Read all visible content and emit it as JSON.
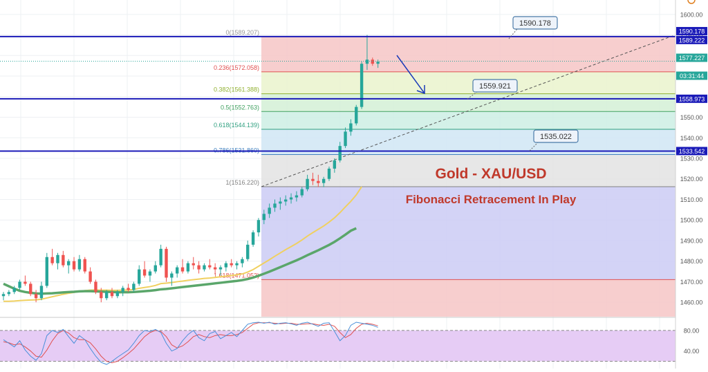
{
  "chart_data": {
    "type": "candlestick",
    "title": "Gold - XAU/USD",
    "subtitle": "Fibonacci Retracement In Play",
    "colors": {
      "up": "#26a69a",
      "down": "#ef5350",
      "ema_fast": "#f0d060",
      "ema_slow": "#5aa66a",
      "hline": "#1a1ab8",
      "title": "#c0392b",
      "callout_border": "#4a7aa8",
      "stoch_bg": "#e6ccf5",
      "stoch_k": "#4a90d9",
      "stoch_d": "#e05050",
      "arrow": "#1a3ab8"
    },
    "price_axis": {
      "range": [
        1453,
        1607
      ],
      "ticks": [
        1600,
        1590,
        1580,
        1570,
        1560,
        1550,
        1540,
        1530,
        1520,
        1510,
        1500,
        1490,
        1480,
        1470,
        1460
      ]
    },
    "fibonacci": {
      "levels": [
        {
          "label": "0(1589.207)",
          "value": 1589.207,
          "zone_color": "#f6c5c5"
        },
        {
          "label": "0.236(1572.058)",
          "value": 1572.058,
          "zone_color": "#eaf3cc"
        },
        {
          "label": "0.382(1561.388)",
          "value": 1561.388,
          "zone_color": "#d3f0d6"
        },
        {
          "label": "0.5(1552.763)",
          "value": 1552.763,
          "zone_color": "#cdeee4"
        },
        {
          "label": "0.618(1544.139)",
          "value": 1544.139,
          "zone_color": "#d0e6f5"
        },
        {
          "label": "0.786(1531.860)",
          "value": 1531.86,
          "zone_color": "#e3e3e3"
        },
        {
          "label": "1(1516.220)",
          "value": 1516.22,
          "zone_color": "#cbcbf5"
        },
        {
          "label": "1.618(1471.052)",
          "value": 1471.052,
          "zone_color": "#f6c5c5"
        }
      ],
      "line_colors": [
        "#999999",
        "#e05050",
        "#90b030",
        "#40a060",
        "#30a080",
        "#4080c0",
        "#808080",
        "#e05050"
      ]
    },
    "horizontal_lines": [
      1589.222,
      1558.973,
      1533.542
    ],
    "callouts": [
      {
        "text": "1590.178",
        "value": 1590.178
      },
      {
        "text": "1559.921",
        "value": 1559.921
      },
      {
        "text": "1535.022",
        "value": 1535.022
      }
    ],
    "axis_labels": [
      {
        "text": "1590.178",
        "value": 1590.178,
        "bg": "#1a1ab8",
        "fg": "#ffffff"
      },
      {
        "text": "1589.222",
        "value": 1589.222,
        "bg": "#1a1ab8",
        "fg": "#ffffff"
      },
      {
        "text": "1577.227",
        "value": 1577.227,
        "bg": "#26a69a",
        "fg": "#ffffff"
      },
      {
        "text": "03:31:44",
        "value": 1572.2,
        "bg": "#26a69a",
        "fg": "#ffffff"
      },
      {
        "text": "1558.973",
        "value": 1558.973,
        "bg": "#1a1ab8",
        "fg": "#ffffff"
      },
      {
        "text": "1533.542",
        "value": 1533.542,
        "bg": "#1a1ab8",
        "fg": "#ffffff"
      }
    ],
    "stochastic": {
      "ticks": [
        80,
        40
      ],
      "range": [
        10,
        100
      ],
      "band": [
        20,
        80
      ]
    },
    "candles": [
      [
        1463,
        1465,
        1461,
        1464
      ],
      [
        1464,
        1466,
        1463,
        1465
      ],
      [
        1465,
        1468,
        1464,
        1467
      ],
      [
        1467,
        1471,
        1466,
        1470
      ],
      [
        1470,
        1473,
        1468,
        1469
      ],
      [
        1469,
        1470,
        1463,
        1464
      ],
      [
        1464,
        1466,
        1460,
        1462
      ],
      [
        1462,
        1470,
        1461,
        1468
      ],
      [
        1468,
        1484,
        1467,
        1482
      ],
      [
        1482,
        1486,
        1478,
        1479
      ],
      [
        1479,
        1484,
        1476,
        1483
      ],
      [
        1483,
        1485,
        1477,
        1478
      ],
      [
        1478,
        1481,
        1474,
        1480
      ],
      [
        1480,
        1482,
        1475,
        1476
      ],
      [
        1476,
        1483,
        1475,
        1481
      ],
      [
        1481,
        1482,
        1474,
        1475
      ],
      [
        1475,
        1477,
        1469,
        1470
      ],
      [
        1470,
        1471,
        1464,
        1465
      ],
      [
        1465,
        1467,
        1460,
        1462
      ],
      [
        1462,
        1466,
        1461,
        1465
      ],
      [
        1465,
        1467,
        1462,
        1463
      ],
      [
        1463,
        1466,
        1462,
        1465
      ],
      [
        1465,
        1468,
        1463,
        1467
      ],
      [
        1467,
        1469,
        1465,
        1466
      ],
      [
        1466,
        1470,
        1465,
        1469
      ],
      [
        1469,
        1478,
        1468,
        1476
      ],
      [
        1476,
        1480,
        1472,
        1473
      ],
      [
        1473,
        1476,
        1470,
        1475
      ],
      [
        1475,
        1480,
        1474,
        1478
      ],
      [
        1478,
        1488,
        1477,
        1486
      ],
      [
        1486,
        1487,
        1470,
        1472
      ],
      [
        1472,
        1475,
        1468,
        1474
      ],
      [
        1474,
        1478,
        1472,
        1477
      ],
      [
        1477,
        1481,
        1474,
        1475
      ],
      [
        1475,
        1480,
        1474,
        1479
      ],
      [
        1479,
        1482,
        1476,
        1478
      ],
      [
        1478,
        1480,
        1474,
        1476
      ],
      [
        1476,
        1479,
        1475,
        1478
      ],
      [
        1478,
        1481,
        1476,
        1477
      ],
      [
        1477,
        1479,
        1474,
        1476
      ],
      [
        1476,
        1478,
        1473,
        1477
      ],
      [
        1477,
        1480,
        1475,
        1479
      ],
      [
        1479,
        1481,
        1477,
        1478
      ],
      [
        1478,
        1480,
        1476,
        1479
      ],
      [
        1479,
        1482,
        1477,
        1481
      ],
      [
        1481,
        1490,
        1480,
        1488
      ],
      [
        1488,
        1495,
        1487,
        1494
      ],
      [
        1494,
        1501,
        1492,
        1500
      ],
      [
        1500,
        1505,
        1498,
        1503
      ],
      [
        1503,
        1508,
        1501,
        1506
      ],
      [
        1506,
        1510,
        1504,
        1508
      ],
      [
        1508,
        1511,
        1505,
        1509
      ],
      [
        1509,
        1512,
        1507,
        1510
      ],
      [
        1510,
        1513,
        1508,
        1511
      ],
      [
        1511,
        1514,
        1509,
        1512
      ],
      [
        1512,
        1516,
        1511,
        1515
      ],
      [
        1515,
        1522,
        1514,
        1520
      ],
      [
        1520,
        1523,
        1517,
        1519
      ],
      [
        1519,
        1522,
        1516,
        1518
      ],
      [
        1518,
        1521,
        1516,
        1520
      ],
      [
        1520,
        1526,
        1519,
        1525
      ],
      [
        1525,
        1530,
        1523,
        1529
      ],
      [
        1529,
        1538,
        1528,
        1536
      ],
      [
        1536,
        1545,
        1535,
        1543
      ],
      [
        1543,
        1549,
        1541,
        1547
      ],
      [
        1547,
        1556,
        1546,
        1555
      ],
      [
        1555,
        1577,
        1554,
        1576
      ],
      [
        1576,
        1590,
        1573,
        1578
      ],
      [
        1578,
        1579,
        1575,
        1576
      ],
      [
        1576,
        1578,
        1574,
        1577
      ]
    ],
    "ema_fast": [
      1460.5,
      1460.5,
      1460.6,
      1460.8,
      1461,
      1461.1,
      1461.2,
      1461.5,
      1462.1,
      1462.7,
      1463.3,
      1463.9,
      1464.4,
      1464.8,
      1465.3,
      1465.7,
      1465.9,
      1466,
      1465.9,
      1465.9,
      1465.8,
      1465.8,
      1465.9,
      1466,
      1466.2,
      1466.8,
      1467.2,
      1467.6,
      1468.2,
      1469.1,
      1469.3,
      1469.6,
      1470,
      1470.3,
      1470.7,
      1471,
      1471.3,
      1471.6,
      1471.8,
      1472.1,
      1472.4,
      1472.7,
      1473,
      1473.4,
      1473.8,
      1474.7,
      1475.9,
      1477.5,
      1479.1,
      1480.7,
      1482.4,
      1484,
      1485.6,
      1487.1,
      1488.6,
      1490.3,
      1492.2,
      1493.9,
      1495.5,
      1497.1,
      1499,
      1501.1,
      1503.6,
      1506.4,
      1509.1,
      1512.2,
      1516.2
    ],
    "ema_slow": [
      1469,
      1467.8,
      1466.6,
      1465.6,
      1465,
      1464.6,
      1464.3,
      1464.2,
      1464.3,
      1464.4,
      1464.6,
      1464.8,
      1465,
      1465.1,
      1465.3,
      1465.4,
      1465.4,
      1465.3,
      1465.2,
      1465.1,
      1465,
      1464.9,
      1464.9,
      1464.9,
      1465,
      1465.2,
      1465.4,
      1465.6,
      1465.9,
      1466.3,
      1466.5,
      1466.8,
      1467.1,
      1467.4,
      1467.7,
      1468,
      1468.3,
      1468.6,
      1468.9,
      1469.2,
      1469.5,
      1469.8,
      1470.1,
      1470.4,
      1470.8,
      1471.3,
      1472,
      1472.9,
      1473.9,
      1474.9,
      1476,
      1477.1,
      1478.2,
      1479.3,
      1480.4,
      1481.6,
      1482.9,
      1484.1,
      1485.3,
      1486.6,
      1487.9,
      1489.4,
      1491.1,
      1492.9,
      1494.8,
      1496
    ],
    "stoch_k": [
      62,
      55,
      48,
      60,
      42,
      30,
      22,
      35,
      70,
      80,
      76,
      82,
      68,
      55,
      70,
      62,
      45,
      30,
      18,
      14,
      20,
      28,
      35,
      42,
      55,
      70,
      80,
      78,
      82,
      76,
      55,
      40,
      45,
      60,
      72,
      80,
      66,
      60,
      74,
      78,
      64,
      70,
      76,
      68,
      80,
      92,
      95,
      96,
      94,
      96,
      92,
      94,
      95,
      93,
      90,
      94,
      96,
      92,
      88,
      94,
      95,
      78,
      60,
      70,
      90,
      96,
      94,
      92,
      90,
      86
    ],
    "stoch_d": [
      58,
      56,
      52,
      54,
      48,
      40,
      30,
      28,
      42,
      60,
      74,
      80,
      75,
      66,
      62,
      62,
      56,
      44,
      30,
      20,
      17,
      20,
      27,
      35,
      44,
      56,
      68,
      76,
      80,
      78,
      68,
      52,
      46,
      50,
      58,
      68,
      72,
      68,
      66,
      70,
      72,
      70,
      70,
      72,
      76,
      84,
      92,
      95,
      95,
      95,
      94,
      93,
      94,
      94,
      92,
      92,
      93,
      93,
      91,
      90,
      92,
      88,
      76,
      66,
      72,
      84,
      92,
      94,
      92,
      89
    ]
  }
}
